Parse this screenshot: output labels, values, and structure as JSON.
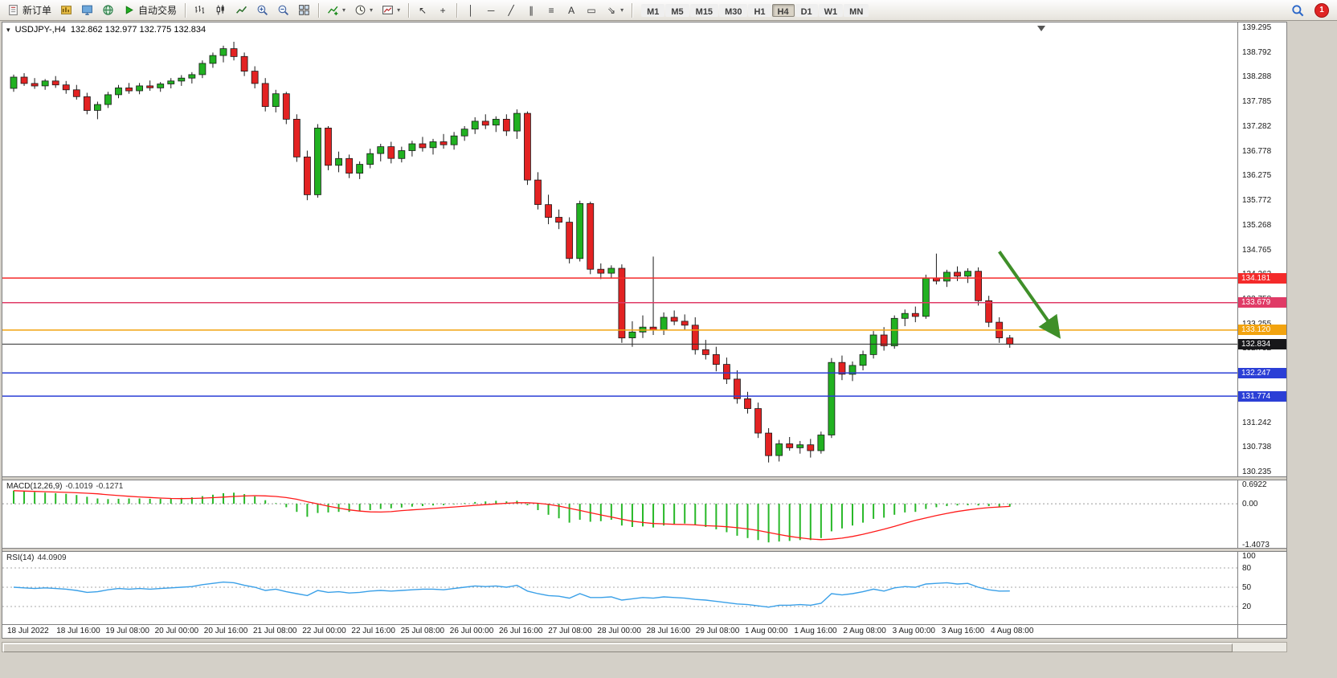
{
  "toolbar": {
    "new_order_label": "新订单",
    "autotrading_label": "自动交易",
    "timeframes": [
      "M1",
      "M5",
      "M15",
      "M30",
      "H1",
      "H4",
      "D1",
      "W1",
      "MN"
    ],
    "active_timeframe": "H4",
    "notification_count": "1",
    "glyphs": {
      "cursor": "↖",
      "crosshair": "+",
      "vline": "│",
      "hline": "─",
      "trend": "╱",
      "channel": "∥",
      "fibo": "≡",
      "text": "A",
      "label": "▭",
      "shapes": "⇘",
      "caret": "▾",
      "collapse": "▾"
    }
  },
  "icons": {
    "new-order-icon": "document",
    "charts-icon": "gold-grid",
    "profiles-icon": "blue-monitor",
    "terminal-icon": "globe",
    "autotrading-icon": "green-play",
    "bars-chart-icon": "ohlc-bars",
    "candles-chart-icon": "candlesticks",
    "line-chart-icon": "zigzag-line",
    "zoom-in-icon": "magnifier-plus",
    "zoom-out-icon": "magnifier-minus",
    "tile-windows-icon": "tiled-grid",
    "indicators-icon": "chart-plus",
    "periods-icon": "clock",
    "templates-icon": "chart-template",
    "search-icon": "magnifier",
    "chevron-down-icon": "caret-down"
  },
  "chart": {
    "symbol_info": {
      "title": "USDJPY-,H4",
      "ohlc": "132.862 132.977 132.775 132.834"
    },
    "price_axis": {
      "max": 139.295,
      "min": 130.235,
      "ticks": [
        "139.295",
        "138.792",
        "138.288",
        "137.785",
        "137.282",
        "136.778",
        "136.275",
        "135.772",
        "135.268",
        "134.765",
        "134.262",
        "133.758",
        "133.255",
        "132.752",
        "132.248",
        "131.745",
        "131.242",
        "130.738",
        "130.235"
      ]
    },
    "hlines": [
      {
        "price": 134.181,
        "label": "134.181",
        "color": "#f42a2a"
      },
      {
        "price": 133.679,
        "label": "133.679",
        "color": "#e03a66"
      },
      {
        "price": 133.12,
        "label": "133.120",
        "color": "#f2a30f"
      },
      {
        "price": 132.247,
        "label": "132.247",
        "color": "#2b3fd6"
      },
      {
        "price": 131.774,
        "label": "131.774",
        "color": "#2b3fd6"
      }
    ],
    "current_price": {
      "price": 132.834,
      "label": "132.834",
      "color": "#17171a"
    },
    "time_axis": [
      "18 Jul 2022",
      "18 Jul 16:00",
      "19 Jul 08:00",
      "20 Jul 00:00",
      "20 Jul 16:00",
      "21 Jul 08:00",
      "22 Jul 00:00",
      "22 Jul 16:00",
      "25 Jul 08:00",
      "26 Jul 00:00",
      "26 Jul 16:00",
      "27 Jul 08:00",
      "28 Jul 00:00",
      "28 Jul 16:00",
      "29 Jul 08:00",
      "1 Aug 00:00",
      "1 Aug 16:00",
      "2 Aug 08:00",
      "3 Aug 00:00",
      "3 Aug 16:00",
      "4 Aug 08:00"
    ]
  },
  "macd": {
    "name": "MACD(12,26,9)",
    "value1": "-0.1019",
    "value2": "-0.1271",
    "axis": [
      "0.6922",
      "0.00",
      "-1.4073"
    ],
    "max": 0.6922,
    "min": -1.4073
  },
  "rsi": {
    "name": "RSI(14)",
    "value": "44.0909",
    "axis": [
      "100",
      "80",
      "50",
      "20"
    ],
    "levels": [
      80,
      50,
      20
    ]
  },
  "chart_data": {
    "type": "candlestick",
    "symbol": "USDJPY-",
    "timeframe": "H4",
    "up_color": "#21b121",
    "down_color": "#e32222",
    "candles": [
      [
        138.05,
        138.33,
        137.98,
        138.28
      ],
      [
        138.28,
        138.36,
        138.1,
        138.15
      ],
      [
        138.15,
        138.26,
        138.04,
        138.1
      ],
      [
        138.1,
        138.24,
        138.02,
        138.2
      ],
      [
        138.2,
        138.3,
        138.06,
        138.12
      ],
      [
        138.12,
        138.2,
        137.94,
        138.02
      ],
      [
        138.02,
        138.12,
        137.82,
        137.88
      ],
      [
        137.88,
        137.96,
        137.52,
        137.6
      ],
      [
        137.6,
        137.78,
        137.42,
        137.72
      ],
      [
        137.72,
        137.98,
        137.65,
        137.92
      ],
      [
        137.92,
        138.12,
        137.85,
        138.06
      ],
      [
        138.06,
        138.16,
        137.94,
        138.0
      ],
      [
        138.0,
        138.16,
        137.93,
        138.1
      ],
      [
        138.1,
        138.21,
        138.0,
        138.06
      ],
      [
        138.06,
        138.18,
        137.98,
        138.14
      ],
      [
        138.14,
        138.26,
        138.05,
        138.2
      ],
      [
        138.2,
        138.32,
        138.1,
        138.26
      ],
      [
        138.26,
        138.38,
        138.15,
        138.33
      ],
      [
        138.33,
        138.62,
        138.26,
        138.56
      ],
      [
        138.56,
        138.78,
        138.47,
        138.72
      ],
      [
        138.72,
        138.92,
        138.58,
        138.86
      ],
      [
        138.86,
        139.0,
        138.62,
        138.7
      ],
      [
        138.7,
        138.78,
        138.3,
        138.4
      ],
      [
        138.4,
        138.5,
        138.05,
        138.15
      ],
      [
        138.15,
        138.26,
        137.58,
        137.68
      ],
      [
        137.68,
        138.02,
        137.56,
        137.94
      ],
      [
        137.94,
        137.98,
        137.32,
        137.42
      ],
      [
        137.42,
        137.52,
        136.55,
        136.65
      ],
      [
        136.65,
        136.78,
        135.77,
        135.88
      ],
      [
        135.88,
        137.32,
        135.82,
        137.24
      ],
      [
        137.24,
        137.28,
        136.38,
        136.48
      ],
      [
        136.48,
        136.76,
        136.34,
        136.62
      ],
      [
        136.62,
        136.7,
        136.22,
        136.32
      ],
      [
        136.32,
        136.56,
        136.2,
        136.5
      ],
      [
        136.5,
        136.82,
        136.42,
        136.72
      ],
      [
        136.72,
        136.92,
        136.56,
        136.86
      ],
      [
        136.86,
        136.96,
        136.52,
        136.62
      ],
      [
        136.62,
        136.86,
        136.54,
        136.78
      ],
      [
        136.78,
        136.98,
        136.66,
        136.92
      ],
      [
        136.92,
        137.06,
        136.76,
        136.84
      ],
      [
        136.84,
        137.02,
        136.7,
        136.96
      ],
      [
        136.96,
        137.12,
        136.82,
        136.9
      ],
      [
        136.9,
        137.16,
        136.8,
        137.08
      ],
      [
        137.08,
        137.28,
        136.98,
        137.22
      ],
      [
        137.22,
        137.46,
        137.12,
        137.38
      ],
      [
        137.38,
        137.52,
        137.22,
        137.3
      ],
      [
        137.3,
        137.48,
        137.16,
        137.42
      ],
      [
        137.42,
        137.52,
        137.08,
        137.18
      ],
      [
        137.18,
        137.62,
        137.02,
        137.54
      ],
      [
        137.54,
        137.58,
        136.08,
        136.18
      ],
      [
        136.18,
        136.34,
        135.58,
        135.68
      ],
      [
        135.68,
        135.88,
        135.28,
        135.42
      ],
      [
        135.42,
        135.58,
        135.18,
        135.32
      ],
      [
        135.32,
        135.42,
        134.48,
        134.58
      ],
      [
        134.58,
        135.76,
        134.52,
        135.7
      ],
      [
        135.7,
        135.74,
        134.26,
        134.36
      ],
      [
        134.36,
        134.48,
        134.16,
        134.28
      ],
      [
        134.28,
        134.44,
        134.18,
        134.38
      ],
      [
        134.38,
        134.46,
        132.86,
        132.96
      ],
      [
        132.96,
        133.3,
        132.78,
        133.08
      ],
      [
        133.08,
        133.42,
        132.96,
        133.18
      ],
      [
        133.18,
        134.62,
        133.02,
        133.12
      ],
      [
        133.12,
        133.48,
        133.02,
        133.38
      ],
      [
        133.38,
        133.52,
        133.22,
        133.3
      ],
      [
        133.3,
        133.44,
        133.12,
        133.22
      ],
      [
        133.22,
        133.38,
        132.62,
        132.72
      ],
      [
        132.72,
        132.92,
        132.52,
        132.62
      ],
      [
        132.62,
        132.78,
        132.28,
        132.42
      ],
      [
        132.42,
        132.56,
        132.02,
        132.12
      ],
      [
        132.12,
        132.3,
        131.62,
        131.72
      ],
      [
        131.72,
        131.86,
        131.42,
        131.52
      ],
      [
        131.52,
        131.64,
        130.92,
        131.02
      ],
      [
        131.02,
        131.12,
        130.42,
        130.56
      ],
      [
        130.56,
        130.88,
        130.44,
        130.8
      ],
      [
        130.8,
        130.94,
        130.66,
        130.72
      ],
      [
        130.72,
        130.86,
        130.6,
        130.78
      ],
      [
        130.78,
        130.9,
        130.52,
        130.66
      ],
      [
        130.66,
        131.05,
        130.6,
        130.98
      ],
      [
        130.98,
        132.55,
        130.92,
        132.46
      ],
      [
        132.46,
        132.6,
        132.1,
        132.22
      ],
      [
        132.22,
        132.48,
        132.08,
        132.4
      ],
      [
        132.4,
        132.7,
        132.3,
        132.62
      ],
      [
        132.62,
        133.1,
        132.54,
        133.02
      ],
      [
        133.02,
        133.18,
        132.7,
        132.8
      ],
      [
        132.8,
        133.42,
        132.74,
        133.36
      ],
      [
        133.36,
        133.54,
        133.2,
        133.46
      ],
      [
        133.46,
        133.6,
        133.28,
        133.4
      ],
      [
        133.4,
        134.25,
        133.35,
        134.18
      ],
      [
        134.18,
        134.68,
        134.05,
        134.12
      ],
      [
        134.12,
        134.35,
        134.0,
        134.3
      ],
      [
        134.3,
        134.42,
        134.12,
        134.22
      ],
      [
        134.22,
        134.38,
        134.08,
        134.32
      ],
      [
        134.32,
        134.4,
        133.62,
        133.72
      ],
      [
        133.72,
        133.82,
        133.18,
        133.28
      ],
      [
        133.28,
        133.38,
        132.86,
        132.96
      ],
      [
        132.96,
        133.02,
        132.76,
        132.834
      ]
    ],
    "macd_histogram": [
      0.45,
      0.42,
      0.4,
      0.38,
      0.36,
      0.34,
      0.3,
      0.24,
      0.18,
      0.16,
      0.17,
      0.18,
      0.18,
      0.17,
      0.17,
      0.18,
      0.2,
      0.22,
      0.26,
      0.31,
      0.36,
      0.38,
      0.33,
      0.25,
      0.12,
      0.02,
      -0.12,
      -0.28,
      -0.45,
      -0.32,
      -0.3,
      -0.28,
      -0.28,
      -0.26,
      -0.22,
      -0.18,
      -0.16,
      -0.13,
      -0.1,
      -0.08,
      -0.06,
      -0.05,
      -0.02,
      0.02,
      0.06,
      0.08,
      0.1,
      0.08,
      0.1,
      -0.05,
      -0.22,
      -0.38,
      -0.5,
      -0.65,
      -0.55,
      -0.62,
      -0.6,
      -0.55,
      -0.75,
      -0.8,
      -0.78,
      -0.82,
      -0.75,
      -0.7,
      -0.68,
      -0.72,
      -0.8,
      -0.88,
      -0.98,
      -1.1,
      -1.18,
      -1.25,
      -1.33,
      -1.3,
      -1.28,
      -1.25,
      -1.25,
      -1.18,
      -0.95,
      -0.85,
      -0.75,
      -0.65,
      -0.52,
      -0.48,
      -0.38,
      -0.3,
      -0.28,
      -0.18,
      -0.12,
      -0.08,
      -0.06,
      -0.05,
      -0.06,
      -0.08,
      -0.1,
      -0.1019
    ],
    "rsi_values": [
      50,
      49,
      48,
      49,
      48,
      47,
      45,
      42,
      43,
      46,
      48,
      47,
      48,
      47,
      48,
      49,
      50,
      51,
      54,
      56,
      58,
      57,
      53,
      50,
      45,
      47,
      43,
      40,
      37,
      45,
      42,
      43,
      41,
      42,
      44,
      45,
      44,
      45,
      46,
      47,
      47,
      46,
      48,
      50,
      52,
      51,
      52,
      50,
      53,
      44,
      40,
      37,
      36,
      33,
      40,
      34,
      34,
      35,
      30,
      32,
      34,
      33,
      35,
      34,
      33,
      31,
      30,
      28,
      26,
      24,
      23,
      21,
      19,
      22,
      22,
      23,
      22,
      25,
      40,
      38,
      40,
      43,
      47,
      44,
      49,
      51,
      50,
      55,
      56,
      57,
      55,
      56,
      50,
      46,
      44,
      44.09
    ],
    "arrow": {
      "from_index": 94,
      "from_price": 134.72,
      "to_index": 99.5,
      "to_price": 133.05,
      "color": "#3f8f29"
    }
  },
  "colors": {
    "window_bg": "#d4d0c8",
    "chart_bg": "#ffffff",
    "macd_hist": "#28b828",
    "macd_signal": "#ff1a1a",
    "rsi_line": "#3aa0e8"
  }
}
